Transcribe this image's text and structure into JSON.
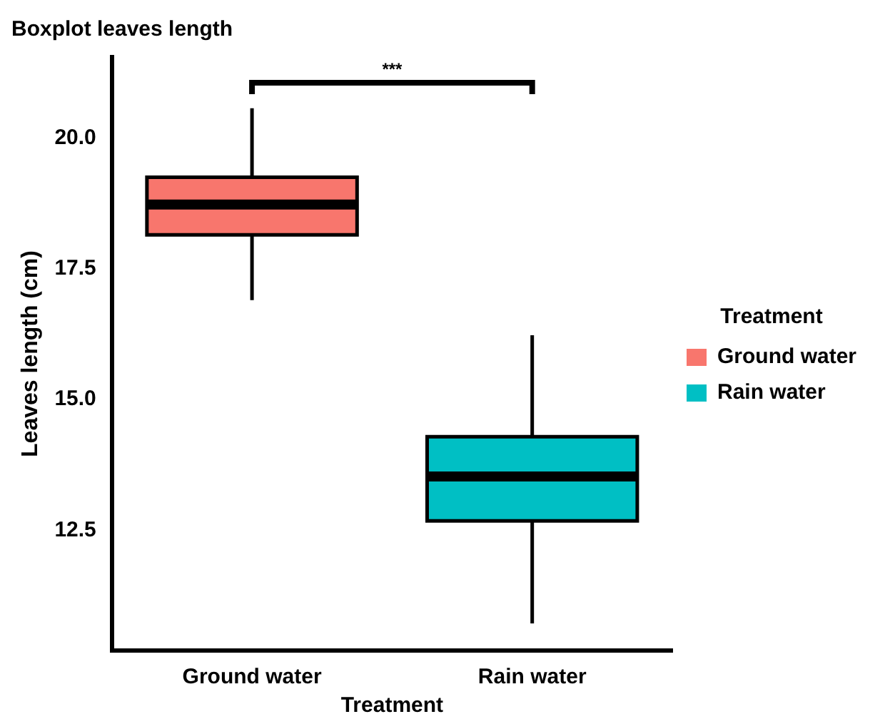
{
  "chart_data": {
    "type": "box",
    "title": "Boxplot leaves length",
    "xlabel": "Treatment",
    "ylabel": "Leaves length (cm)",
    "legend_title": "Treatment",
    "categories": [
      "Ground water",
      "Rain water"
    ],
    "series": [
      {
        "name": "Ground water",
        "color": "#f8766d",
        "boxes": [
          {
            "low": 16.9,
            "q1": 18.15,
            "median": 18.73,
            "q3": 19.25,
            "high": 20.57
          },
          null
        ]
      },
      {
        "name": "Rain water",
        "color": "#00bfc4",
        "boxes": [
          null,
          {
            "low": 10.72,
            "q1": 12.68,
            "median": 13.53,
            "q3": 14.29,
            "high": 16.23
          }
        ]
      }
    ],
    "ylim": [
      10.2,
      21.55
    ],
    "yticks": [
      {
        "value": 12.5,
        "label": "12.5"
      },
      {
        "value": 15,
        "label": "15.0"
      },
      {
        "value": 17.5,
        "label": "17.5"
      },
      {
        "value": 20,
        "label": "20.0"
      }
    ],
    "annotations": [
      "***"
    ],
    "grid": false,
    "legend": "right"
  }
}
